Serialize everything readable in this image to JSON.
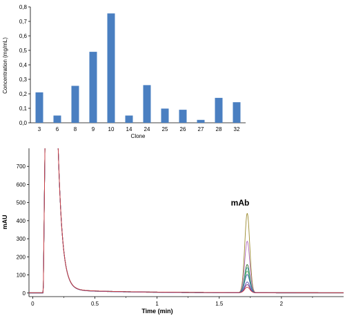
{
  "chart_data": [
    {
      "type": "bar",
      "xlabel": "Clone",
      "ylabel": "Concentration (mg/mL)",
      "categories": [
        "3",
        "6",
        "8",
        "9",
        "10",
        "14",
        "24",
        "25",
        "26",
        "27",
        "28",
        "32"
      ],
      "values": [
        0.21,
        0.05,
        0.255,
        0.49,
        0.755,
        0.05,
        0.26,
        0.098,
        0.09,
        0.02,
        0.172,
        0.142
      ],
      "ylim": [
        0,
        0.8
      ],
      "yticks": [
        "0,0",
        "0,1",
        "0,2",
        "0,3",
        "0,4",
        "0,5",
        "0,6",
        "0,7",
        "0,8"
      ],
      "bar_color": "#4a7fc1",
      "grid": false
    },
    {
      "type": "line",
      "xlabel": "Time (min)",
      "ylabel": "mAU",
      "xlim": [
        -0.03,
        2.5
      ],
      "ylim": [
        -20,
        800
      ],
      "xticks": [
        "0",
        "0.5",
        "1",
        "1.5",
        "2"
      ],
      "yticks": [
        "0",
        "100",
        "200",
        "300",
        "400",
        "500",
        "600",
        "700"
      ],
      "annotation": "mAb",
      "peak_time": 1.725,
      "series": [
        {
          "color": "#9b8a2e",
          "peak": 440
        },
        {
          "color": "#b36bc0",
          "peak": 285
        },
        {
          "color": "#2e6b2e",
          "peak": 155
        },
        {
          "color": "#3aa0a0",
          "peak": 140
        },
        {
          "color": "#5cae5c",
          "peak": 120
        },
        {
          "color": "#2f5fb3",
          "peak": 100
        },
        {
          "color": "#5a4bb0",
          "peak": 60
        },
        {
          "color": "#7a2f7a",
          "peak": 45
        },
        {
          "color": "#d04040",
          "peak": 30
        }
      ]
    }
  ]
}
